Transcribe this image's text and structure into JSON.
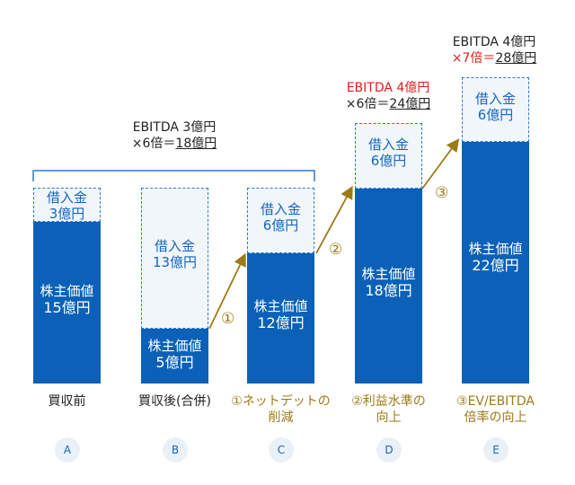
{
  "colors": {
    "equity": "#0b61b7",
    "debt_border": "#2b7bd0",
    "arrow": "#9c7a16",
    "highlight": "#e21b1b"
  },
  "bars": [
    {
      "id": "A",
      "debt_label": "借入金",
      "debt_value": "3億円",
      "equity_label": "株主価値",
      "equity_value": "15億円"
    },
    {
      "id": "B",
      "debt_label": "借入金",
      "debt_value": "13億円",
      "equity_label": "株主価値",
      "equity_value": "5億円"
    },
    {
      "id": "C",
      "debt_label": "借入金",
      "debt_value": "6億円",
      "equity_label": "株主価値",
      "equity_value": "12億円"
    },
    {
      "id": "D",
      "debt_label": "借入金",
      "debt_value": "6億円",
      "equity_label": "株主価値",
      "equity_value": "18億円"
    },
    {
      "id": "E",
      "debt_label": "借入金",
      "debt_value": "6億円",
      "equity_label": "株主価値",
      "equity_value": "22億円"
    }
  ],
  "annotations": {
    "ab": {
      "line1": "EBITDA 3億円",
      "line2_prefix": "×6倍＝",
      "line2_value": "18億円"
    },
    "d": {
      "line1": "EBITDA 4億円",
      "line2_prefix": "×6倍＝",
      "line2_value": "24億円"
    },
    "e": {
      "line1": "EBITDA 4億円",
      "line2_prefix": "×7倍＝",
      "line2_value": "28億円"
    }
  },
  "steps": [
    "①",
    "②",
    "③"
  ],
  "categories": [
    {
      "line1": "買収前",
      "line2": ""
    },
    {
      "line1": "買収後(合併)",
      "line2": ""
    },
    {
      "line1": "①ネットデットの",
      "line2": "削減"
    },
    {
      "line1": "②利益水準の",
      "line2": "向上"
    },
    {
      "line1": "③EV/EBITDA",
      "line2": "倍率の向上"
    }
  ],
  "letters": [
    "A",
    "B",
    "C",
    "D",
    "E"
  ]
}
